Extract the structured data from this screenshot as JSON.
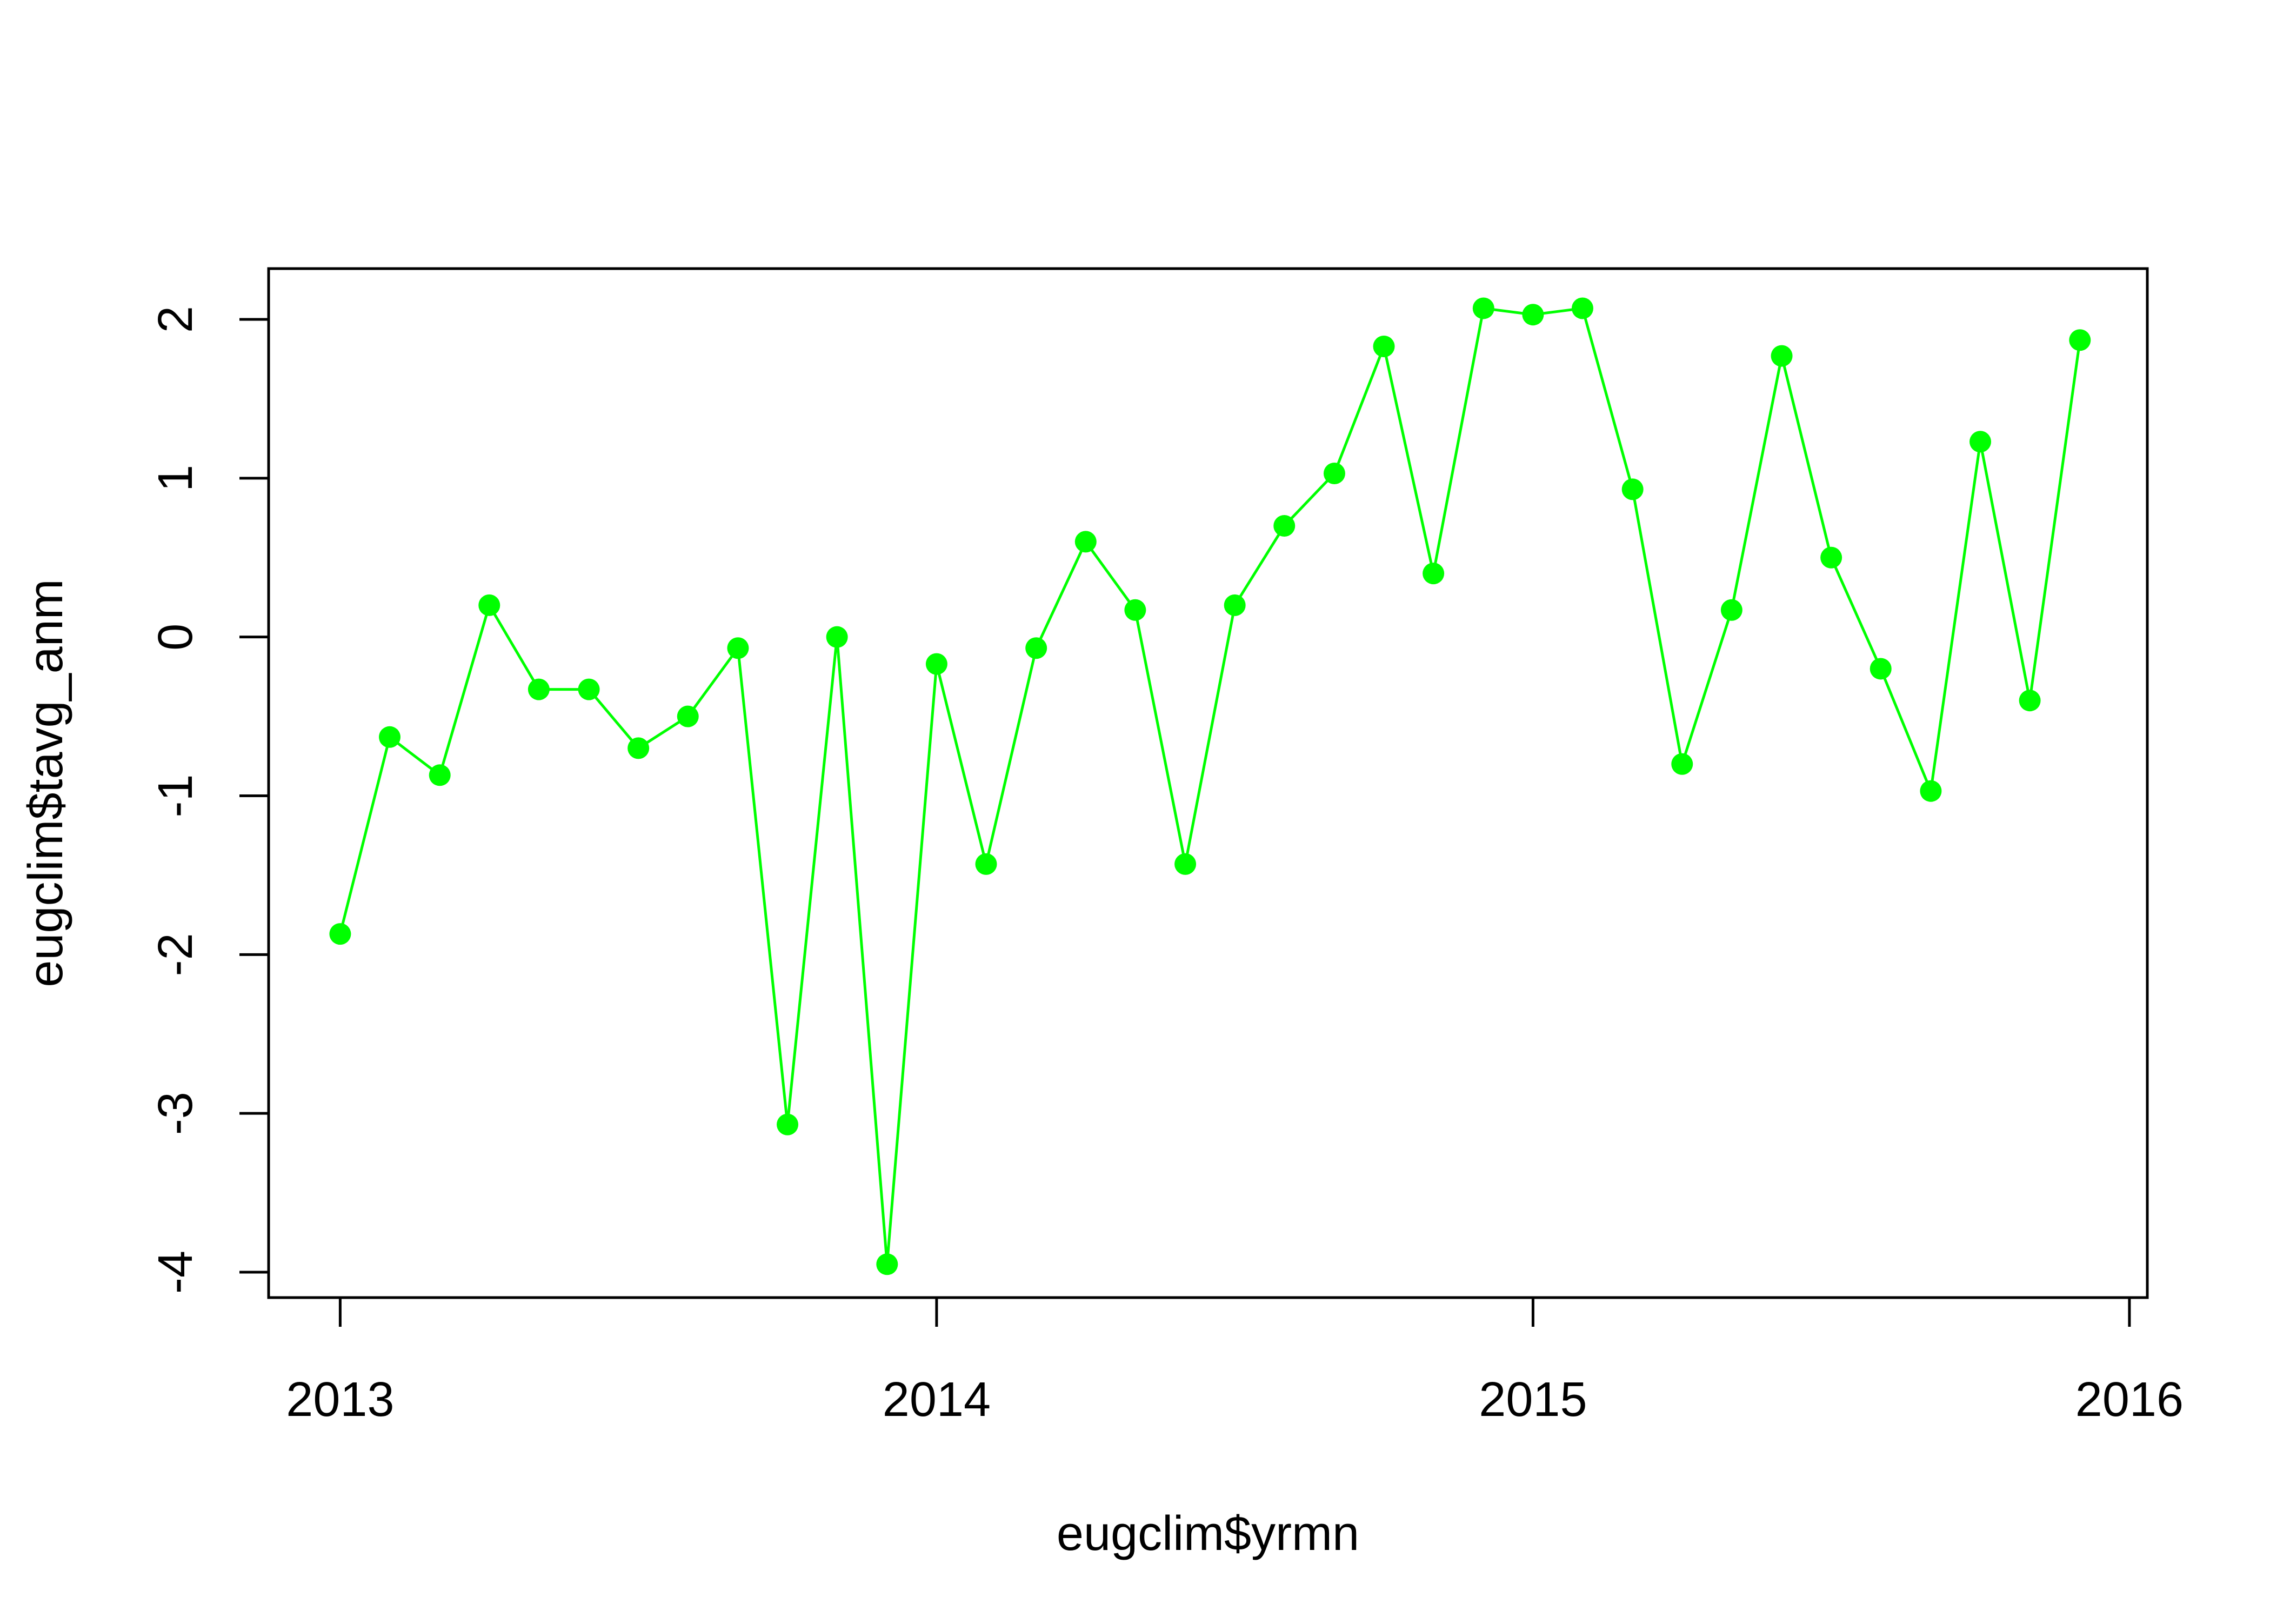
{
  "chart_data": {
    "type": "line",
    "title": "",
    "xlabel": "eugclim$yrmn",
    "ylabel": "eugclim$tavg_anm",
    "xlim": [
      2012.88,
      2016.03
    ],
    "ylim": [
      -4.16,
      2.32
    ],
    "x_ticks": [
      2013,
      2014,
      2015,
      2016
    ],
    "x_tick_labels": [
      "2013",
      "2014",
      "2015",
      "2016"
    ],
    "y_ticks": [
      -4,
      -3,
      -2,
      -1,
      0,
      1,
      2
    ],
    "y_tick_labels": [
      "-4",
      "-3",
      "-2",
      "-1",
      "0",
      "1",
      "2"
    ],
    "grid": false,
    "legend": "none",
    "series": [
      {
        "color": "#00FF00",
        "marker": "filled-circle",
        "x": [
          2013.0,
          2013.083,
          2013.167,
          2013.25,
          2013.333,
          2013.417,
          2013.5,
          2013.583,
          2013.667,
          2013.75,
          2013.833,
          2013.917,
          2014.0,
          2014.083,
          2014.167,
          2014.25,
          2014.333,
          2014.417,
          2014.5,
          2014.583,
          2014.667,
          2014.75,
          2014.833,
          2014.917,
          2015.0,
          2015.083,
          2015.167,
          2015.25,
          2015.333,
          2015.417,
          2015.5,
          2015.583,
          2015.667,
          2015.75,
          2015.833,
          2015.917
        ],
        "y": [
          -1.87,
          -0.63,
          -0.87,
          0.2,
          -0.33,
          -0.33,
          -0.7,
          -0.5,
          -0.07,
          -3.07,
          0.0,
          -3.95,
          -0.17,
          -1.43,
          -0.07,
          0.6,
          0.17,
          -1.43,
          0.2,
          0.7,
          1.03,
          1.83,
          0.4,
          2.07,
          2.03,
          2.07,
          0.93,
          -0.8,
          0.17,
          1.77,
          0.5,
          -0.2,
          -0.97,
          1.23,
          -0.4,
          1.87
        ]
      }
    ]
  }
}
